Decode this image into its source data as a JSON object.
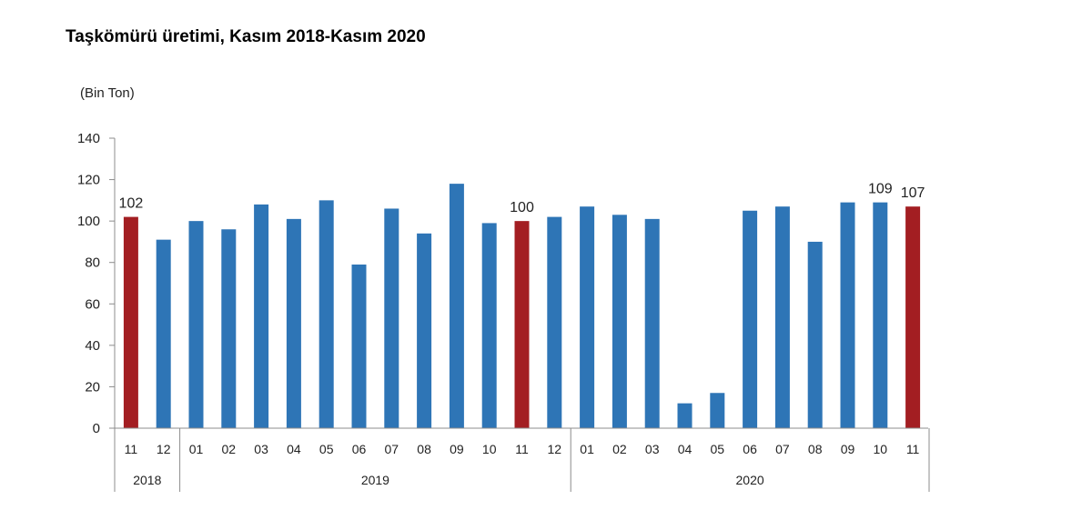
{
  "chart_data": {
    "type": "bar",
    "title": "Taşkömürü üretimi, Kasım 2018-Kasım 2020",
    "unit_label": "(Bin Ton)",
    "xlabel": "",
    "ylabel": "",
    "ylim": [
      0,
      140
    ],
    "yticks": [
      0,
      20,
      40,
      60,
      80,
      100,
      120,
      140
    ],
    "grid": false,
    "legend": "none",
    "categories": [
      "11",
      "12",
      "01",
      "02",
      "03",
      "04",
      "05",
      "06",
      "07",
      "08",
      "09",
      "10",
      "11",
      "12",
      "01",
      "02",
      "03",
      "04",
      "05",
      "06",
      "07",
      "08",
      "09",
      "10",
      "11"
    ],
    "values": [
      102,
      91,
      100,
      96,
      108,
      101,
      110,
      79,
      106,
      94,
      118,
      99,
      100,
      102,
      107,
      103,
      101,
      12,
      17,
      105,
      107,
      90,
      109,
      109,
      107
    ],
    "highlight": [
      true,
      false,
      false,
      false,
      false,
      false,
      false,
      false,
      false,
      false,
      false,
      false,
      true,
      false,
      false,
      false,
      false,
      false,
      false,
      false,
      false,
      false,
      false,
      false,
      true
    ],
    "data_labels": [
      {
        "index": 0,
        "text": "102"
      },
      {
        "index": 12,
        "text": "100"
      },
      {
        "index": 23,
        "text": "109"
      },
      {
        "index": 24,
        "text": "107"
      }
    ],
    "year_groups": [
      {
        "label": "2018",
        "start": 0,
        "end": 1
      },
      {
        "label": "2019",
        "start": 2,
        "end": 13
      },
      {
        "label": "2020",
        "start": 14,
        "end": 24
      }
    ],
    "colors": {
      "bar": "#2E75B6",
      "highlight": "#A31E22",
      "axis": "#8C8C8C"
    }
  }
}
